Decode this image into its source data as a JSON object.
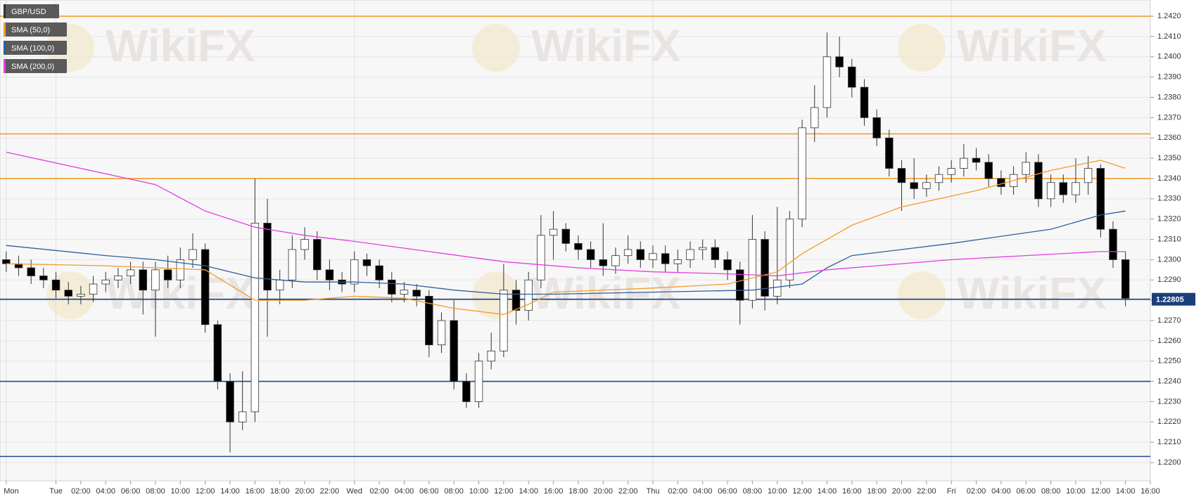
{
  "chart_data": {
    "type": "candlestick",
    "x": [
      20,
      21,
      22,
      23,
      24,
      25,
      26,
      27,
      28,
      29,
      30,
      31,
      32,
      33,
      34,
      35,
      36,
      37,
      38,
      39,
      40,
      41,
      42,
      43,
      44,
      45,
      46,
      47,
      48,
      49,
      50,
      51,
      52,
      53,
      54,
      55,
      56,
      57,
      58,
      59,
      60,
      61,
      62,
      63,
      64,
      65,
      66,
      67,
      68,
      69,
      70,
      71,
      72,
      73,
      74,
      75,
      76,
      77,
      78,
      79,
      80,
      81,
      82,
      83,
      84,
      85,
      86,
      87,
      88,
      89,
      90,
      91,
      92,
      93,
      94,
      95,
      96,
      97,
      98,
      99,
      100,
      101,
      102,
      103,
      104,
      105,
      106,
      107,
      108,
      109,
      110
    ],
    "series": [
      {
        "name": "GBP/USD",
        "type": "candlestick",
        "color": "#333333",
        "up_color": "#ffffff",
        "down_color": "#000000",
        "open": [
          1.23,
          1.2298,
          1.2296,
          1.2292,
          1.229,
          1.2285,
          1.2282,
          1.2283,
          1.2288,
          1.229,
          1.2292,
          1.2295,
          1.2285,
          1.2295,
          1.229,
          1.23,
          1.2305,
          1.2268,
          1.224,
          1.222,
          1.2225,
          1.2318,
          1.2285,
          1.229,
          1.2305,
          1.231,
          1.2295,
          1.229,
          1.2288,
          1.23,
          1.2297,
          1.229,
          1.2283,
          1.2285,
          1.2282,
          1.2258,
          1.227,
          1.224,
          1.223,
          1.225,
          1.2255,
          1.2285,
          1.2275,
          1.229,
          1.2312,
          1.2315,
          1.2308,
          1.2305,
          1.23,
          1.2297,
          1.2302,
          1.2305,
          1.23,
          1.2303,
          1.2298,
          1.23,
          1.2305,
          1.2306,
          1.23,
          1.2295,
          1.228,
          1.231,
          1.2282,
          1.229,
          1.232,
          1.2365,
          1.2375,
          1.24,
          1.2395,
          1.2385,
          1.237,
          1.236,
          1.2345,
          1.2338,
          1.2335,
          1.2338,
          1.2342,
          1.2345,
          1.235,
          1.2348,
          1.234,
          1.2336,
          1.2342,
          1.2348,
          1.233,
          1.2338,
          1.2332,
          1.2338,
          1.2345,
          1.2315,
          1.23
        ],
        "high": [
          1.2304,
          1.2302,
          1.23,
          1.2296,
          1.2294,
          1.2289,
          1.2287,
          1.2292,
          1.2294,
          1.2296,
          1.2299,
          1.2299,
          1.2299,
          1.2302,
          1.2306,
          1.2313,
          1.2308,
          1.227,
          1.2244,
          1.2245,
          1.234,
          1.233,
          1.2295,
          1.2312,
          1.2316,
          1.2314,
          1.23,
          1.2294,
          1.2304,
          1.2303,
          1.23,
          1.2294,
          1.2289,
          1.2288,
          1.2285,
          1.2274,
          1.228,
          1.2244,
          1.2254,
          1.2264,
          1.2298,
          1.229,
          1.2294,
          1.2322,
          1.2324,
          1.2318,
          1.2312,
          1.2309,
          1.2318,
          1.2306,
          1.2312,
          1.2309,
          1.2307,
          1.2307,
          1.2305,
          1.2309,
          1.231,
          1.231,
          1.2304,
          1.2299,
          1.2322,
          1.2314,
          1.2326,
          1.2324,
          1.2369,
          1.2386,
          1.2412,
          1.241,
          1.2399,
          1.2389,
          1.2374,
          1.2364,
          1.2349,
          1.235,
          1.2342,
          1.2346,
          1.2349,
          1.2357,
          1.2355,
          1.2352,
          1.2344,
          1.2346,
          1.2353,
          1.2352,
          1.2342,
          1.2342,
          1.235,
          1.2351,
          1.2347,
          1.2319,
          1.2304
        ],
        "low": [
          1.2294,
          1.2292,
          1.2288,
          1.2286,
          1.2281,
          1.2278,
          1.2278,
          1.2279,
          1.2284,
          1.2286,
          1.2288,
          1.2273,
          1.2262,
          1.2286,
          1.2286,
          1.2296,
          1.2264,
          1.2236,
          1.2205,
          1.2216,
          1.222,
          1.2262,
          1.2278,
          1.2286,
          1.23,
          1.229,
          1.2285,
          1.2284,
          1.2284,
          1.2292,
          1.2286,
          1.2279,
          1.2279,
          1.2277,
          1.2252,
          1.2254,
          1.2236,
          1.2227,
          1.2227,
          1.2246,
          1.2252,
          1.2268,
          1.227,
          1.2286,
          1.23,
          1.2304,
          1.23,
          1.2296,
          1.2292,
          1.2293,
          1.2298,
          1.2296,
          1.2296,
          1.2294,
          1.2294,
          1.2296,
          1.23,
          1.2296,
          1.229,
          1.2268,
          1.2276,
          1.2275,
          1.2278,
          1.2286,
          1.2316,
          1.2358,
          1.237,
          1.239,
          1.238,
          1.2366,
          1.2356,
          1.2341,
          1.2324,
          1.233,
          1.2331,
          1.2334,
          1.2338,
          1.2341,
          1.2344,
          1.2336,
          1.2332,
          1.2332,
          1.2338,
          1.2326,
          1.2326,
          1.2328,
          1.2328,
          1.2332,
          1.2311,
          1.2296,
          1.2277
        ],
        "close": [
          1.2298,
          1.2296,
          1.2292,
          1.229,
          1.2285,
          1.2282,
          1.2283,
          1.2288,
          1.229,
          1.2292,
          1.2295,
          1.2285,
          1.2295,
          1.229,
          1.23,
          1.2305,
          1.2268,
          1.224,
          1.222,
          1.2225,
          1.2318,
          1.2285,
          1.229,
          1.2305,
          1.231,
          1.2295,
          1.229,
          1.2288,
          1.23,
          1.2297,
          1.229,
          1.2283,
          1.2285,
          1.2282,
          1.2258,
          1.227,
          1.224,
          1.223,
          1.225,
          1.2255,
          1.2285,
          1.2275,
          1.229,
          1.2312,
          1.2315,
          1.2308,
          1.2305,
          1.23,
          1.2297,
          1.2302,
          1.2305,
          1.23,
          1.2303,
          1.2298,
          1.23,
          1.2305,
          1.2306,
          1.23,
          1.2295,
          1.228,
          1.231,
          1.2282,
          1.229,
          1.232,
          1.2365,
          1.2375,
          1.24,
          1.2395,
          1.2385,
          1.237,
          1.236,
          1.2345,
          1.2338,
          1.2335,
          1.2338,
          1.2342,
          1.2345,
          1.235,
          1.2348,
          1.234,
          1.2336,
          1.2342,
          1.2348,
          1.233,
          1.2338,
          1.2332,
          1.2338,
          1.2345,
          1.2315,
          1.23,
          1.2281
        ]
      },
      {
        "name": "SMA (50,0)",
        "type": "line",
        "color": "#f39c2b",
        "x": [
          20,
          28,
          36,
          40,
          44,
          48,
          52,
          56,
          60,
          62,
          64,
          72,
          78,
          82,
          84,
          88,
          92,
          98,
          104,
          108,
          110
        ],
        "values": [
          1.2298,
          1.2297,
          1.2295,
          1.228,
          1.228,
          1.2282,
          1.2281,
          1.2276,
          1.2273,
          1.2278,
          1.2284,
          1.2286,
          1.2288,
          1.2294,
          1.2303,
          1.2317,
          1.2326,
          1.2334,
          1.2344,
          1.2349,
          1.2345
        ]
      },
      {
        "name": "SMA (100,0)",
        "type": "line",
        "color": "#2e5e9e",
        "x": [
          20,
          28,
          32,
          36,
          40,
          44,
          48,
          52,
          56,
          60,
          64,
          72,
          80,
          84,
          86,
          88,
          92,
          96,
          104,
          108,
          110
        ],
        "values": [
          1.2307,
          1.2302,
          1.23,
          1.2297,
          1.2291,
          1.2289,
          1.2289,
          1.2288,
          1.2285,
          1.2283,
          1.2283,
          1.2284,
          1.2285,
          1.2288,
          1.2296,
          1.2302,
          1.2305,
          1.2308,
          1.2315,
          1.2322,
          1.2324
        ]
      },
      {
        "name": "SMA (200,0)",
        "type": "line",
        "color": "#e23de0",
        "x": [
          20,
          32,
          36,
          40,
          44,
          48,
          54,
          60,
          66,
          72,
          78,
          82,
          86,
          90,
          96,
          102,
          108,
          110
        ],
        "values": [
          1.2353,
          1.2337,
          1.2324,
          1.2316,
          1.2312,
          1.2309,
          1.2304,
          1.2299,
          1.2296,
          1.2294,
          1.2293,
          1.2292,
          1.2295,
          1.2297,
          1.23,
          1.2302,
          1.2304,
          1.2304
        ]
      }
    ],
    "levels": [
      {
        "value": 1.242,
        "color": "#f39c2b"
      },
      {
        "value": 1.2362,
        "color": "#f39c2b"
      },
      {
        "value": 1.234,
        "color": "#f39c2b"
      },
      {
        "value": 1.22805,
        "color": "#1b3f7a"
      },
      {
        "value": 1.224,
        "color": "#1b4f8f"
      },
      {
        "value": 1.2203,
        "color": "#1b4f8f"
      }
    ],
    "last_price": 1.22805,
    "watermark": "WikiFX",
    "legend": "top-left",
    "grid": true,
    "xlim": [
      19.5,
      112
    ],
    "xticks": [
      {
        "value": 20,
        "label": "Mon"
      },
      {
        "value": 24,
        "label": "Tue"
      },
      {
        "value": 26,
        "label": "02:00"
      },
      {
        "value": 28,
        "label": "04:00"
      },
      {
        "value": 30,
        "label": "06:00"
      },
      {
        "value": 32,
        "label": "08:00"
      },
      {
        "value": 34,
        "label": "10:00"
      },
      {
        "value": 36,
        "label": "12:00"
      },
      {
        "value": 38,
        "label": "14:00"
      },
      {
        "value": 40,
        "label": "16:00"
      },
      {
        "value": 42,
        "label": "18:00"
      },
      {
        "value": 44,
        "label": "20:00"
      },
      {
        "value": 46,
        "label": "22:00"
      },
      {
        "value": 48,
        "label": "Wed"
      },
      {
        "value": 50,
        "label": "02:00"
      },
      {
        "value": 52,
        "label": "04:00"
      },
      {
        "value": 54,
        "label": "06:00"
      },
      {
        "value": 56,
        "label": "08:00"
      },
      {
        "value": 58,
        "label": "10:00"
      },
      {
        "value": 60,
        "label": "12:00"
      },
      {
        "value": 62,
        "label": "14:00"
      },
      {
        "value": 64,
        "label": "16:00"
      },
      {
        "value": 66,
        "label": "18:00"
      },
      {
        "value": 68,
        "label": "20:00"
      },
      {
        "value": 70,
        "label": "22:00"
      },
      {
        "value": 72,
        "label": "Thu"
      },
      {
        "value": 74,
        "label": "02:00"
      },
      {
        "value": 76,
        "label": "04:00"
      },
      {
        "value": 78,
        "label": "06:00"
      },
      {
        "value": 80,
        "label": "08:00"
      },
      {
        "value": 82,
        "label": "10:00"
      },
      {
        "value": 84,
        "label": "12:00"
      },
      {
        "value": 86,
        "label": "14:00"
      },
      {
        "value": 88,
        "label": "16:00"
      },
      {
        "value": 90,
        "label": "18:00"
      },
      {
        "value": 92,
        "label": "20:00"
      },
      {
        "value": 94,
        "label": "22:00"
      },
      {
        "value": 96,
        "label": "Fri"
      },
      {
        "value": 98,
        "label": "02:00"
      },
      {
        "value": 100,
        "label": "04:00"
      },
      {
        "value": 102,
        "label": "06:00"
      },
      {
        "value": 104,
        "label": "08:00"
      },
      {
        "value": 106,
        "label": "10:00"
      },
      {
        "value": 108,
        "label": "12:00"
      },
      {
        "value": 110,
        "label": "14:00"
      },
      {
        "value": 112,
        "label": "16:00"
      }
    ],
    "ylim": [
      1.2191,
      1.2428
    ],
    "yticks": [
      {
        "value": 1.22,
        "label": "1.2200"
      },
      {
        "value": 1.221,
        "label": "1.2210"
      },
      {
        "value": 1.222,
        "label": "1.2220"
      },
      {
        "value": 1.223,
        "label": "1.2230"
      },
      {
        "value": 1.224,
        "label": "1.2240"
      },
      {
        "value": 1.225,
        "label": "1.2250"
      },
      {
        "value": 1.226,
        "label": "1.2260"
      },
      {
        "value": 1.227,
        "label": "1.2270"
      },
      {
        "value": 1.228,
        "label": "1.2280"
      },
      {
        "value": 1.229,
        "label": "1.2290"
      },
      {
        "value": 1.23,
        "label": "1.2300"
      },
      {
        "value": 1.231,
        "label": "1.2310"
      },
      {
        "value": 1.232,
        "label": "1.2320"
      },
      {
        "value": 1.233,
        "label": "1.2330"
      },
      {
        "value": 1.234,
        "label": "1.2340"
      },
      {
        "value": 1.235,
        "label": "1.2350"
      },
      {
        "value": 1.236,
        "label": "1.2360"
      },
      {
        "value": 1.237,
        "label": "1.2370"
      },
      {
        "value": 1.238,
        "label": "1.2380"
      },
      {
        "value": 1.239,
        "label": "1.2390"
      },
      {
        "value": 1.24,
        "label": "1.2400"
      },
      {
        "value": 1.241,
        "label": "1.2410"
      },
      {
        "value": 1.242,
        "label": "1.2420"
      }
    ]
  }
}
